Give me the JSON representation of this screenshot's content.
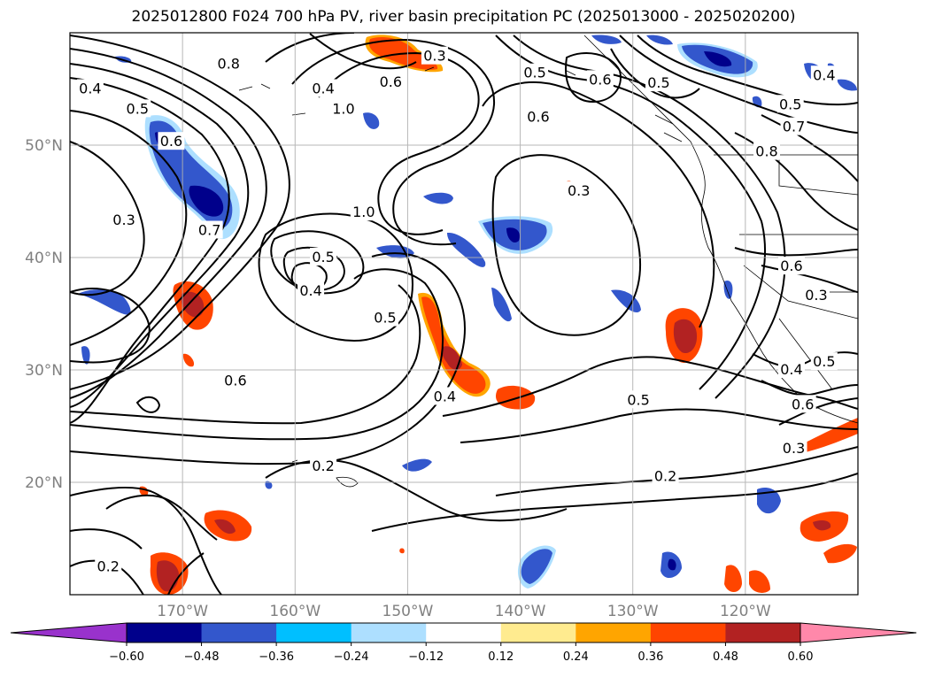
{
  "title": "2025012800 F024 700 hPa PV, river basin precipitation PC (2025013000 - 2025020200)",
  "chart_data": {
    "type": "heatmap",
    "title": "2025012800 F024 700 hPa PV, river basin precipitation PC (2025013000 - 2025020200)",
    "projection": "map, longitude/latitude grid",
    "lon_range": [
      -180,
      -110
    ],
    "lat_range": [
      10,
      60
    ],
    "lat_ticks": [
      {
        "value": 20,
        "label": "20°N"
      },
      {
        "value": 30,
        "label": "30°N"
      },
      {
        "value": 40,
        "label": "40°N"
      },
      {
        "value": 50,
        "label": "50°N"
      }
    ],
    "lon_ticks": [
      {
        "value": -170,
        "label": "170°W"
      },
      {
        "value": -160,
        "label": "160°W"
      },
      {
        "value": -150,
        "label": "150°W"
      },
      {
        "value": -140,
        "label": "140°W"
      },
      {
        "value": -130,
        "label": "130°W"
      },
      {
        "value": -120,
        "label": "120°W"
      }
    ],
    "grid": true,
    "colorbar": {
      "levels": [
        -0.6,
        -0.48,
        -0.36,
        -0.24,
        -0.12,
        0.12,
        0.24,
        0.36,
        0.48,
        0.6
      ],
      "labels": [
        "−0.60",
        "−0.48",
        "−0.36",
        "−0.24",
        "−0.12",
        "0.12",
        "0.24",
        "0.36",
        "0.48",
        "0.60"
      ],
      "colors": [
        "#9932CC",
        "#00008B",
        "#3357CC",
        "#00BFFF",
        "#ADDFFF",
        "#FFFFFF",
        "#FFEB8F",
        "#FFA500",
        "#FF4500",
        "#B22222",
        "#FF88AA"
      ],
      "extend": "both"
    },
    "contour_field": "700 hPa PV",
    "contour_labels": [
      {
        "lon": -165.9,
        "lat": 57.2,
        "text": "0.8"
      },
      {
        "lon": -178.2,
        "lat": 55.0,
        "text": "0.4"
      },
      {
        "lon": -157.5,
        "lat": 55.0,
        "text": "0.4"
      },
      {
        "lon": -174.0,
        "lat": 53.2,
        "text": "0.5"
      },
      {
        "lon": -155.7,
        "lat": 53.2,
        "text": "1.0"
      },
      {
        "lon": -151.5,
        "lat": 55.6,
        "text": "0.6"
      },
      {
        "lon": -147.6,
        "lat": 57.9,
        "text": "0.3"
      },
      {
        "lon": -138.7,
        "lat": 56.4,
        "text": "0.5"
      },
      {
        "lon": -132.9,
        "lat": 55.8,
        "text": "0.6"
      },
      {
        "lon": -127.7,
        "lat": 55.5,
        "text": "0.5"
      },
      {
        "lon": -138.4,
        "lat": 52.5,
        "text": "0.6"
      },
      {
        "lon": -113.0,
        "lat": 56.2,
        "text": "0.4"
      },
      {
        "lon": -116.0,
        "lat": 53.6,
        "text": "0.5"
      },
      {
        "lon": -115.7,
        "lat": 51.6,
        "text": "0.7"
      },
      {
        "lon": -118.1,
        "lat": 49.4,
        "text": "0.8"
      },
      {
        "lon": -171.0,
        "lat": 50.3,
        "text": "0.6"
      },
      {
        "lon": -167.6,
        "lat": 42.4,
        "text": "0.7"
      },
      {
        "lon": -175.2,
        "lat": 43.3,
        "text": "0.3"
      },
      {
        "lon": -153.9,
        "lat": 44.0,
        "text": "1.0"
      },
      {
        "lon": -157.5,
        "lat": 40.0,
        "text": "0.5"
      },
      {
        "lon": -158.6,
        "lat": 37.0,
        "text": "0.4"
      },
      {
        "lon": -152.0,
        "lat": 34.6,
        "text": "0.5"
      },
      {
        "lon": -165.3,
        "lat": 29.0,
        "text": "0.6"
      },
      {
        "lon": -134.8,
        "lat": 45.9,
        "text": "0.3"
      },
      {
        "lon": -115.9,
        "lat": 39.2,
        "text": "0.6"
      },
      {
        "lon": -113.7,
        "lat": 36.6,
        "text": "0.3"
      },
      {
        "lon": -115.9,
        "lat": 30.0,
        "text": "0.4"
      },
      {
        "lon": -113.0,
        "lat": 30.7,
        "text": "0.5"
      },
      {
        "lon": -114.9,
        "lat": 26.9,
        "text": "0.6"
      },
      {
        "lon": -115.7,
        "lat": 23.0,
        "text": "0.3"
      },
      {
        "lon": -146.7,
        "lat": 27.6,
        "text": "0.4"
      },
      {
        "lon": -129.5,
        "lat": 27.3,
        "text": "0.5"
      },
      {
        "lon": -157.5,
        "lat": 21.4,
        "text": "0.2"
      },
      {
        "lon": -127.1,
        "lat": 20.5,
        "text": "0.2"
      },
      {
        "lon": -176.6,
        "lat": 12.5,
        "text": "0.2"
      }
    ]
  }
}
